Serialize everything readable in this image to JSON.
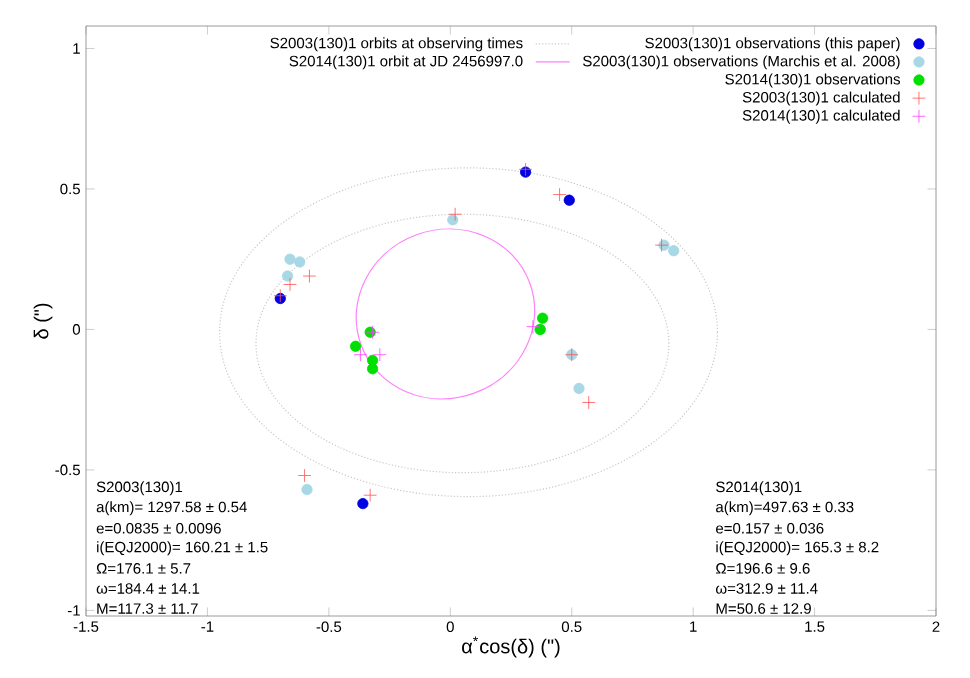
{
  "chart_data": {
    "type": "scatter",
    "xlabel": "α$^{*}$cos(δ) (\")",
    "ylabel": "δ (\")",
    "xlim": [
      -1.5,
      2
    ],
    "ylim": [
      -1.02,
      1.08
    ],
    "xticks": [
      -1.5,
      -1,
      -0.5,
      0,
      0.5,
      1,
      1.5,
      2
    ],
    "yticks": [
      -1,
      -0.5,
      0,
      0.5,
      1
    ],
    "legend": "top right",
    "series": [
      {
        "name": "S2003(130)1 observations (this paper)",
        "color": "#0000e0",
        "marker": "circle",
        "x": [
          -0.7,
          0.31,
          0.49,
          -0.36
        ],
        "values": [
          0.11,
          0.56,
          0.46,
          -0.62
        ]
      },
      {
        "name": "S2003(130)1 observations (Marchis et al. 2008)",
        "color": "#a8d8e6",
        "marker": "circle",
        "x": [
          -0.66,
          -0.62,
          -0.67,
          0.01,
          0.88,
          0.92,
          0.5,
          0.53,
          -0.59,
          0.37
        ],
        "values": [
          0.25,
          0.24,
          0.19,
          0.39,
          0.3,
          0.28,
          -0.09,
          -0.21,
          -0.57,
          0.0
        ]
      },
      {
        "name": "S2014(130)1 observations",
        "color": "#00e000",
        "marker": "circle",
        "x": [
          -0.39,
          -0.33,
          -0.32,
          -0.32,
          0.38,
          0.37
        ],
        "values": [
          -0.06,
          -0.01,
          -0.11,
          -0.14,
          0.04,
          0.0
        ]
      },
      {
        "name": "S2003(130)1 calculated",
        "color": "#ff5050",
        "marker": "cross",
        "x": [
          -0.7,
          -0.66,
          -0.58,
          0.02,
          0.31,
          0.45,
          0.87,
          0.5,
          0.57,
          -0.6,
          -0.33
        ],
        "values": [
          0.12,
          0.16,
          0.19,
          0.41,
          0.57,
          0.48,
          0.3,
          -0.09,
          -0.26,
          -0.52,
          -0.59
        ]
      },
      {
        "name": "S2014(130)1 calculated",
        "color": "#ff40ff",
        "marker": "cross",
        "x": [
          -0.32,
          -0.29,
          -0.37,
          0.34
        ],
        "values": [
          -0.01,
          -0.09,
          -0.09,
          0.01
        ]
      }
    ],
    "annotations": [
      "S2003(130)1 orbits at observing times",
      "S2014(130)1 orbit at JD 2456997.0",
      "S2003(130)1",
      "a(km)= 1297.58 ± 0.54",
      "e=0.0835 ± 0.0096",
      "i(EQJ2000)= 160.21 ± 1.5",
      "Ω=176.1 ± 5.7",
      "ω=184.4 ± 14.1",
      "M=117.3 ± 11.7",
      "S2014(130)1",
      "a(km)=497.63 ± 0.33",
      "e=0.157 ± 0.036",
      "i(EQJ2000)= 165.3 ± 8.2",
      "Ω=196.6 ± 9.6",
      "ω=312.9 ± 11.4",
      "M=50.6 ± 12.9"
    ]
  }
}
